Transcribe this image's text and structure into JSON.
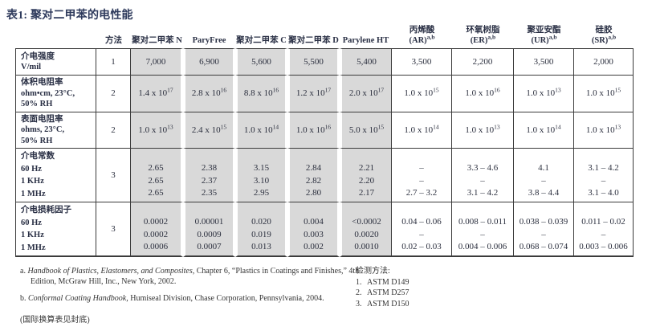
{
  "title": "表1: 聚对二甲苯的电性能",
  "colors": {
    "shaded_column_bg": "#d9d9d9",
    "title_text": "#2e3a5c",
    "grid_border": "#3b3b3b"
  },
  "table": {
    "method_header": "方法",
    "parylene_columns": [
      "聚对二甲苯 N",
      "ParyFree",
      "聚对二甲苯 C",
      "聚对二甲苯 D",
      "Parylene HT"
    ],
    "coating_columns": [
      {
        "name": "丙烯酸",
        "code": "(AR)",
        "sup": "a,b"
      },
      {
        "name": "环氧树脂",
        "code": "(ER)",
        "sup": "a,b"
      },
      {
        "name": "聚亚安酯",
        "code": "(UR)",
        "sup": "a,b"
      },
      {
        "name": "硅胶",
        "code": "(SR)",
        "sup": "a,b"
      }
    ],
    "rows": [
      {
        "label_lines": [
          "介电强度",
          "V/mil"
        ],
        "method": "1",
        "cells": [
          "7,000",
          "6,900",
          "5,600",
          "5,500",
          "5,400",
          "3,500",
          "2,200",
          "3,500",
          "2,000"
        ]
      },
      {
        "label_lines": [
          "体积电阻率",
          "ohm•cm, 23°C,",
          "50% RH"
        ],
        "method": "2",
        "cells": [
          "1.4 x 10^17",
          "2.8 x 10^16",
          "8.8 x 10^16",
          "1.2 x 10^17",
          "2.0 x 10^17",
          "1.0 x 10^15",
          "1.0 x 10^16",
          "1.0 x 10^13",
          "1.0 x 10^15"
        ]
      },
      {
        "label_lines": [
          "表面电阻率",
          "ohms, 23°C,",
          "50% RH"
        ],
        "method": "2",
        "cells": [
          "1.0 x 10^13",
          "2.4 x 10^15",
          "1.0 x 10^14",
          "1.0 x 10^16",
          "5.0 x 10^15",
          "1.0 x 10^14",
          "1.0 x 10^13",
          "1.0 x 10^14",
          "1.0 x 10^13"
        ]
      },
      {
        "label_lines": [
          "介电常数",
          "60 Hz",
          "1 KHz",
          "1 MHz"
        ],
        "method": "3",
        "cells": [
          [
            "2.65",
            "2.65",
            "2.65"
          ],
          [
            "2.38",
            "2.37",
            "2.35"
          ],
          [
            "3.15",
            "3.10",
            "2.95"
          ],
          [
            "2.84",
            "2.82",
            "2.80"
          ],
          [
            "2.21",
            "2.20",
            "2.17"
          ],
          [
            "–",
            "–",
            "2.7 – 3.2"
          ],
          [
            "3.3 – 4.6",
            "–",
            "3.1 – 4.2"
          ],
          [
            "4.1",
            "–",
            "3.8 – 4.4"
          ],
          [
            "3.1 – 4.2",
            "–",
            "3.1 – 4.0"
          ]
        ]
      },
      {
        "label_lines": [
          "介电损耗因子",
          "60 Hz",
          "1 KHz",
          "1 MHz"
        ],
        "method": "3",
        "cells": [
          [
            "0.0002",
            "0.0002",
            "0.0006"
          ],
          [
            "0.00001",
            "0.0009",
            "0.0007"
          ],
          [
            "0.020",
            "0.019",
            "0.013"
          ],
          [
            "0.004",
            "0.003",
            "0.002"
          ],
          [
            "<0.0002",
            "0.0020",
            "0.0010"
          ],
          [
            "0.04 – 0.06",
            "–",
            "0.02 – 0.03"
          ],
          [
            "0.008 – 0.011",
            "–",
            "0.004 – 0.006"
          ],
          [
            "0.038 – 0.039",
            "–",
            "0.068 – 0.074"
          ],
          [
            "0.011 – 0.02",
            "–",
            "0.003 – 0.006"
          ]
        ]
      }
    ]
  },
  "footnotes": {
    "a": {
      "prefix": "a.",
      "italic": "Handbook of Plastics, Elastomers, and Composites",
      "rest": ", Chapter 6, “Plastics in Coatings and Finishes,” 4th Edition, McGraw Hill, Inc., New York, 2002."
    },
    "b": {
      "prefix": "b.",
      "italic": "Conformal Coating Handbook",
      "rest": ", Humiseal Division, Chase Corporation, Pennsylvania, 2004."
    },
    "note": "(国际换算表见封底)"
  },
  "test_methods": {
    "title": "检测方法:",
    "items": [
      {
        "num": "1.",
        "label": "ASTM D149"
      },
      {
        "num": "2.",
        "label": "ASTM D257"
      },
      {
        "num": "3.",
        "label": "ASTM D150"
      }
    ]
  }
}
